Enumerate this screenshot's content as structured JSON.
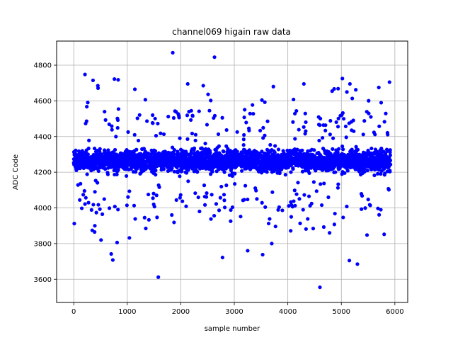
{
  "chart_data": {
    "type": "scatter",
    "title": "channel069 higain raw data",
    "xlabel": "sample number",
    "ylabel": "ADC Code",
    "xlim": [
      -320,
      6240
    ],
    "ylim": [
      3470,
      4935
    ],
    "xticks": [
      0,
      1000,
      2000,
      3000,
      4000,
      5000,
      6000
    ],
    "yticks": [
      3600,
      3800,
      4000,
      4200,
      4400,
      4600,
      4800
    ],
    "grid": true,
    "marker_color": "#0000ff",
    "series": [
      {
        "sample_count": 5920,
        "core_band": [
          4175,
          4350
        ],
        "core_center": 4265,
        "outliers": [
          {
            "x": 210,
            "y": 4748
          },
          {
            "x": 360,
            "y": 4715
          },
          {
            "x": 450,
            "y": 4685
          },
          {
            "x": 760,
            "y": 4722
          },
          {
            "x": 830,
            "y": 4718
          },
          {
            "x": 1850,
            "y": 4870
          },
          {
            "x": 2630,
            "y": 4845
          },
          {
            "x": 2130,
            "y": 4695
          },
          {
            "x": 2420,
            "y": 4685
          },
          {
            "x": 5020,
            "y": 4725
          },
          {
            "x": 5160,
            "y": 4695
          },
          {
            "x": 5700,
            "y": 4675
          },
          {
            "x": 5900,
            "y": 4705
          },
          {
            "x": 3730,
            "y": 4680
          },
          {
            "x": 4300,
            "y": 4695
          },
          {
            "x": 1580,
            "y": 3612
          },
          {
            "x": 4600,
            "y": 3555
          },
          {
            "x": 2780,
            "y": 3722
          },
          {
            "x": 3250,
            "y": 3760
          },
          {
            "x": 3530,
            "y": 3738
          },
          {
            "x": 5300,
            "y": 3685
          },
          {
            "x": 5150,
            "y": 3705
          },
          {
            "x": 700,
            "y": 3742
          },
          {
            "x": 730,
            "y": 3708
          },
          {
            "x": 390,
            "y": 3865
          },
          {
            "x": 510,
            "y": 3820
          },
          {
            "x": 1040,
            "y": 3832
          },
          {
            "x": 810,
            "y": 3806
          },
          {
            "x": 3700,
            "y": 3800
          },
          {
            "x": 5480,
            "y": 3848
          },
          {
            "x": 5800,
            "y": 3852
          },
          {
            "x": 4780,
            "y": 3860
          }
        ]
      }
    ]
  }
}
